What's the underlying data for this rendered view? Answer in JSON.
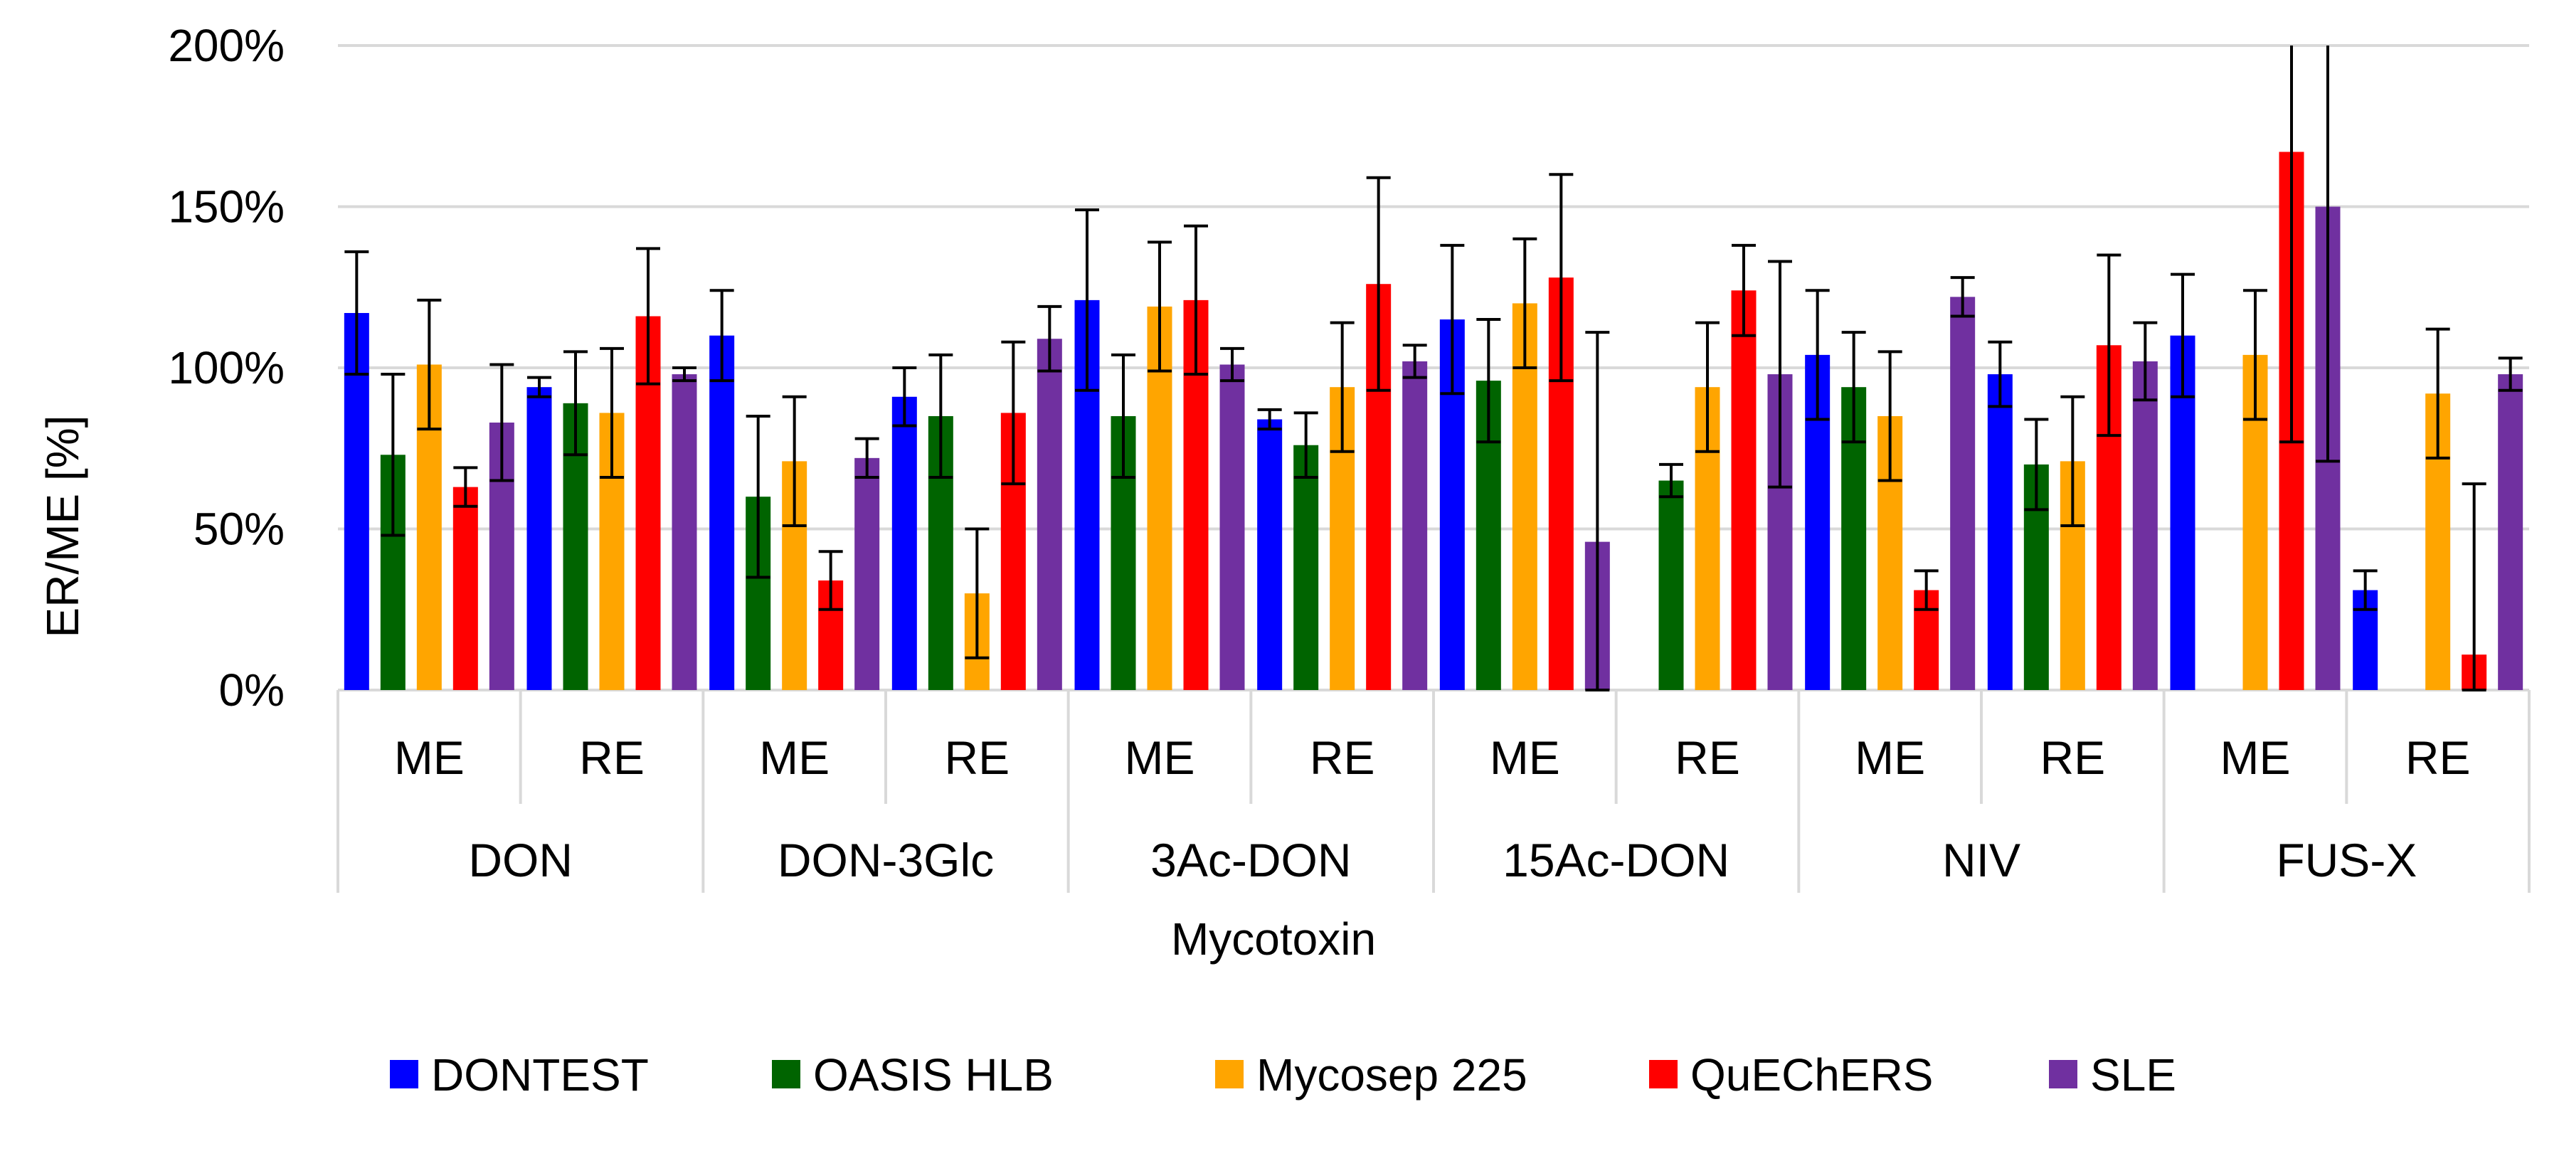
{
  "chart_data": {
    "type": "bar",
    "ylabel": "ER/ME [%]",
    "xlabel": "Mycotoxin",
    "ylim": [
      0,
      200
    ],
    "yticks": [
      0,
      50,
      100,
      150,
      200
    ],
    "ytick_labels": [
      "0%",
      "50%",
      "100%",
      "150%",
      "200%"
    ],
    "grid": true,
    "legend_position": "bottom",
    "groups": [
      {
        "name": "DON",
        "subs": [
          "ME",
          "RE"
        ]
      },
      {
        "name": "DON-3Glc",
        "subs": [
          "ME",
          "RE"
        ]
      },
      {
        "name": "3Ac-DON",
        "subs": [
          "ME",
          "RE"
        ]
      },
      {
        "name": "15Ac-DON",
        "subs": [
          "ME",
          "RE"
        ]
      },
      {
        "name": "NIV",
        "subs": [
          "ME",
          "RE"
        ]
      },
      {
        "name": "FUS-X",
        "subs": [
          "ME",
          "RE"
        ]
      }
    ],
    "categories": [
      "DON ME",
      "DON RE",
      "DON-3Glc ME",
      "DON-3Glc RE",
      "3Ac-DON ME",
      "3Ac-DON RE",
      "15Ac-DON ME",
      "15Ac-DON RE",
      "NIV ME",
      "NIV RE",
      "FUS-X ME",
      "FUS-X RE"
    ],
    "series": [
      {
        "name": "DONTEST",
        "color": "#0000ff",
        "values": [
          117,
          94,
          110,
          91,
          121,
          84,
          115,
          null,
          104,
          98,
          110,
          31
        ],
        "errors": [
          19,
          3,
          14,
          9,
          28,
          3,
          23,
          null,
          20,
          10,
          19,
          6
        ]
      },
      {
        "name": "OASIS HLB",
        "color": "#006400",
        "values": [
          73,
          89,
          60,
          85,
          85,
          76,
          96,
          65,
          94,
          70,
          null,
          null
        ],
        "errors": [
          25,
          16,
          25,
          19,
          19,
          10,
          19,
          5,
          17,
          14,
          null,
          null
        ]
      },
      {
        "name": "Mycosep 225",
        "color": "#ffa500",
        "values": [
          101,
          86,
          71,
          30,
          119,
          94,
          120,
          94,
          85,
          71,
          104,
          92
        ],
        "errors": [
          20,
          20,
          20,
          20,
          20,
          20,
          20,
          20,
          20,
          20,
          20,
          20
        ]
      },
      {
        "name": "QuEChERS",
        "color": "#ff0000",
        "values": [
          63,
          116,
          34,
          86,
          121,
          126,
          128,
          124,
          31,
          107,
          167,
          11
        ],
        "errors": [
          6,
          21,
          9,
          22,
          23,
          33,
          32,
          14,
          6,
          28,
          90,
          53
        ]
      },
      {
        "name": "SLE",
        "color": "#7030a0",
        "values": [
          83,
          98,
          72,
          109,
          101,
          102,
          46,
          98,
          122,
          102,
          150,
          98
        ],
        "errors": [
          18,
          2,
          6,
          10,
          5,
          5,
          65,
          35,
          6,
          12,
          79,
          5
        ]
      }
    ]
  }
}
